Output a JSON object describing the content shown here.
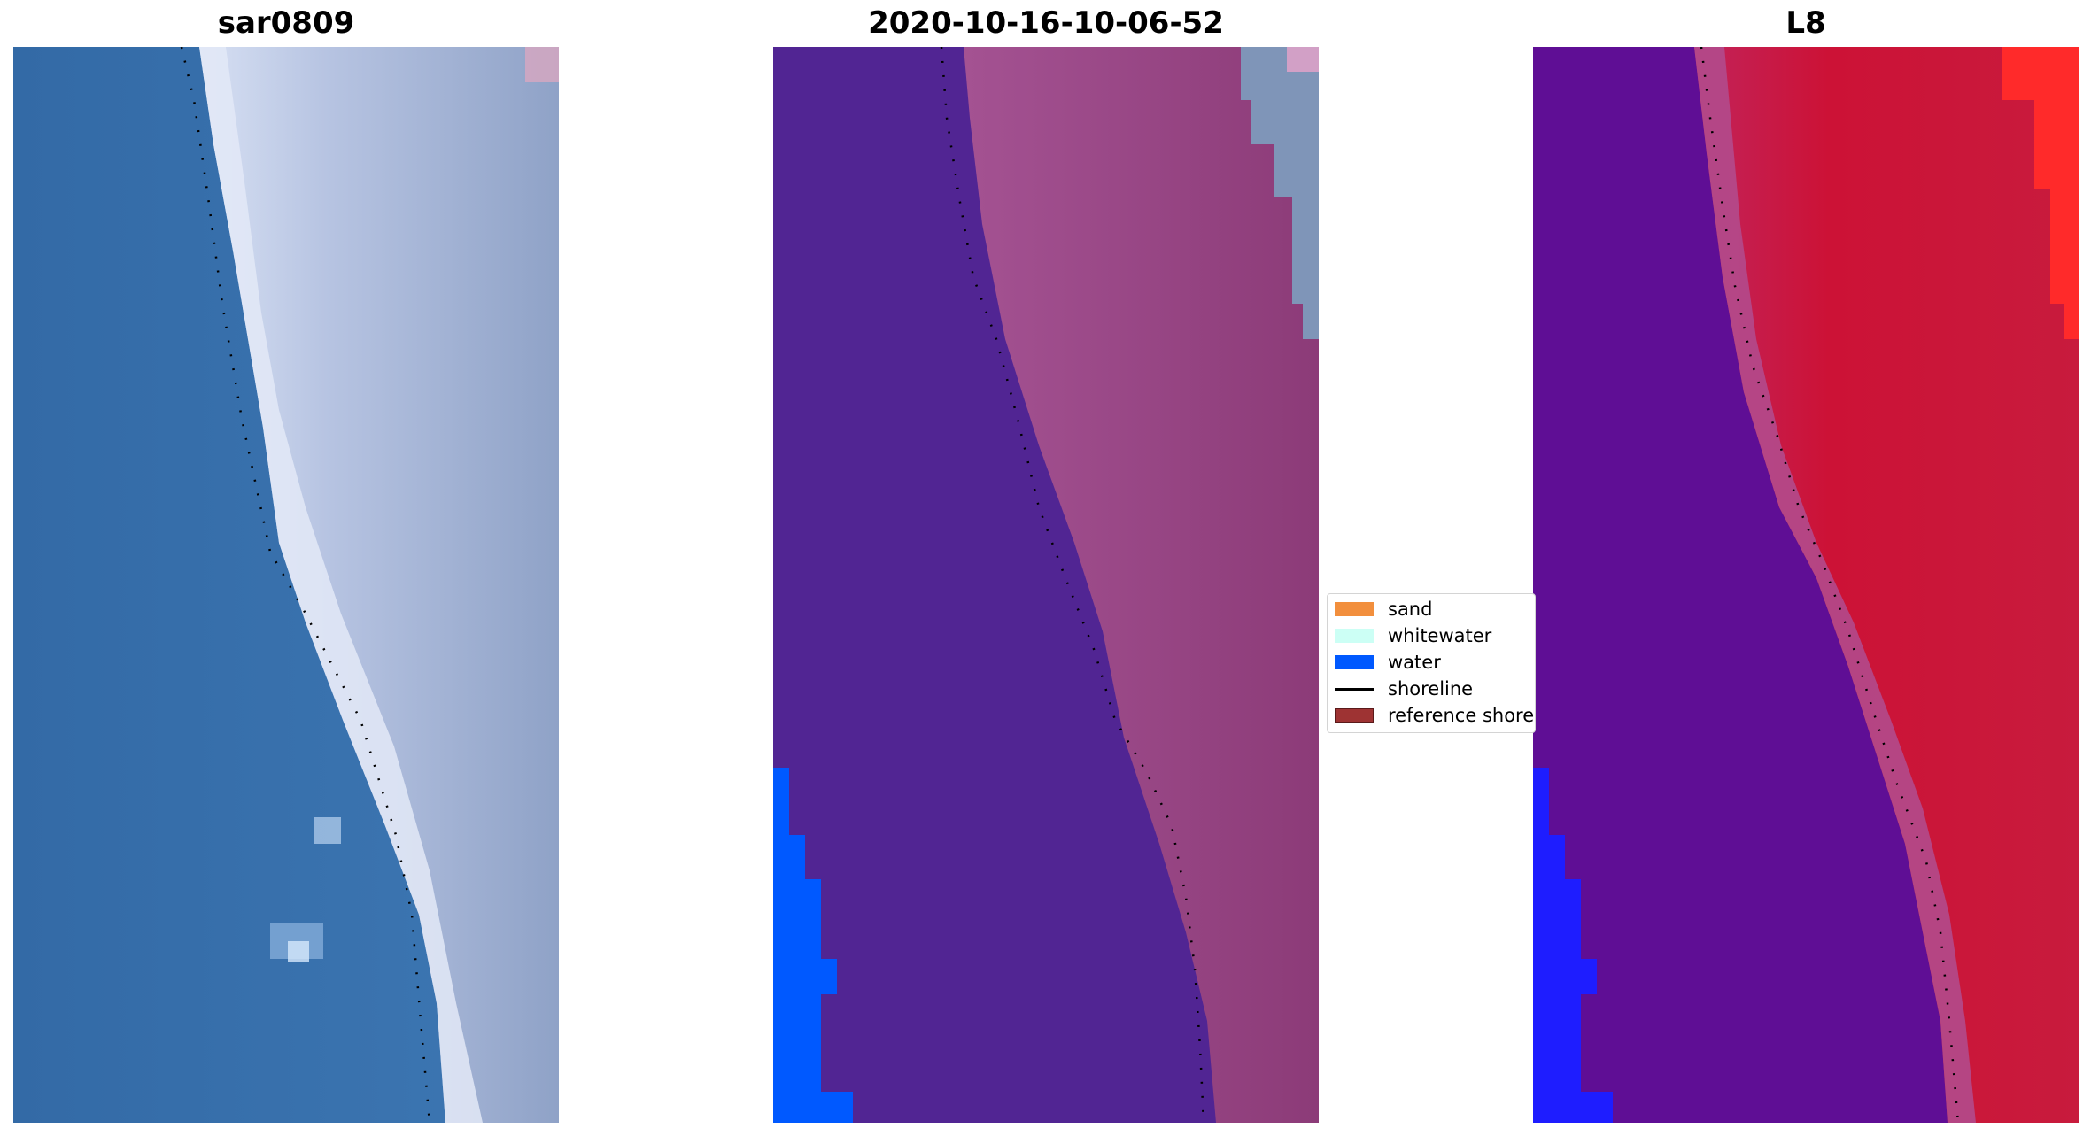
{
  "panels": [
    {
      "title": "sar0809",
      "style": "rgb"
    },
    {
      "title": "2020-10-16-10-06-52",
      "style": "classified"
    },
    {
      "title": "L8",
      "style": "falsecolor"
    }
  ],
  "legend": {
    "items": [
      {
        "label": "sand",
        "color": "#f28f3d",
        "kind": "patch"
      },
      {
        "label": "whitewater",
        "color": "#ccfff5",
        "kind": "patch"
      },
      {
        "label": "water",
        "color": "#0059ff",
        "kind": "patch"
      },
      {
        "label": "shoreline",
        "color": "#000000",
        "kind": "line"
      },
      {
        "label": "reference shoreline",
        "color": "#9e3333",
        "kind": "patch"
      }
    ]
  },
  "colors": {
    "ocean_rgb": "#3a6ea8",
    "beach_rgb": "#c9d4ec",
    "land_rgb": "#8ea0c4",
    "classified_water": "#512593",
    "classified_land": "#8e3b78",
    "classified_water_blue": "#0059ff",
    "classified_grey": "#7f95b8",
    "false_water": "#5e0e96",
    "false_land": "#c8102e",
    "false_blue": "#1e1dff",
    "false_bright_red": "#ff2222",
    "shoreline_dots": "#000000"
  }
}
